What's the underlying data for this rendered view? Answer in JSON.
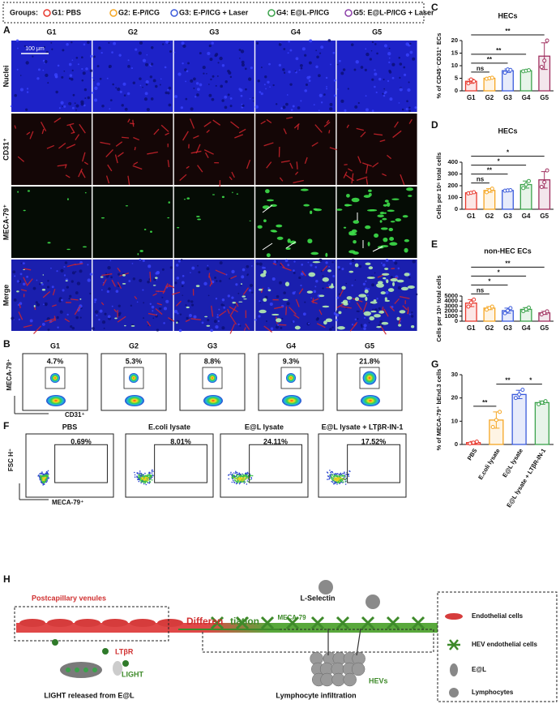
{
  "legend": {
    "title": "Groups:",
    "items": [
      {
        "label": "G1: PBS",
        "color": "#e8392e"
      },
      {
        "label": "G2: E-P/ICG",
        "color": "#f5a623"
      },
      {
        "label": "G3: E-P/ICG + Laser",
        "color": "#3b5bdb"
      },
      {
        "label": "G4: E@L-P/ICG",
        "color": "#3aa24a"
      },
      {
        "label": "G5: E@L-P/ICG + Laser",
        "color": "#8b3fa8"
      }
    ]
  },
  "panel_a": {
    "label": "A",
    "columns": [
      "G1",
      "G2",
      "G3",
      "G4",
      "G5"
    ],
    "rows": [
      "Nuclei",
      "CD31⁺",
      "MECA-79⁺",
      "Merge"
    ],
    "scale_bar": "100 μm"
  },
  "panel_b": {
    "label": "B",
    "columns": [
      "G1",
      "G2",
      "G3",
      "G4",
      "G5"
    ],
    "percentages": [
      "4.7%",
      "5.3%",
      "8.8%",
      "9.3%",
      "21.8%"
    ],
    "y_axis": "MECA-79⁺",
    "x_axis": "CD31⁺"
  },
  "panel_f": {
    "label": "F",
    "columns": [
      "PBS",
      "E.coli lysate",
      "E@L lysate",
      "E@L lysate + LTβR-IN-1"
    ],
    "percentages": [
      "0.69%",
      "8.01%",
      "24.11%",
      "17.52%"
    ],
    "y_axis": "FSC H⁺",
    "x_axis": "MECA-79⁺"
  },
  "panel_h": {
    "label": "H",
    "postcapillary": "Postcapillary venules",
    "differentiation_a": "Differen",
    "differentiation_b": "tiation",
    "l_selectin": "L-Selectin",
    "meca": "MECA-79",
    "ltbr": "LTβR",
    "light": "LIGHT",
    "hevs": "HEVs",
    "caption_left": "LIGHT released from E@L",
    "caption_right": "Lymphocyte infiltration",
    "legend": [
      "Endothelial cells",
      "HEV endothelial cells",
      "E@L",
      "Lymphocytes"
    ]
  },
  "chart_data": [
    {
      "type": "bar",
      "panel": "C",
      "title": "HECs",
      "y_label": "% of CD45⁻CD31⁺ ECs",
      "categories": [
        "G1",
        "G2",
        "G3",
        "G4",
        "G5"
      ],
      "colors": [
        "#e8392e",
        "#f5a623",
        "#3b5bdb",
        "#3aa24a",
        "#a03060"
      ],
      "values": [
        3.8,
        5.0,
        8.0,
        8.0,
        13.8
      ],
      "errors": [
        0.8,
        0.2,
        0.7,
        0.2,
        5.3
      ],
      "points": [
        [
          3.0,
          4.5,
          3.8
        ],
        [
          4.8,
          5.0,
          5.2
        ],
        [
          7.2,
          8.5,
          8.3
        ],
        [
          7.8,
          8.0,
          8.2
        ],
        [
          9.5,
          12,
          20
        ]
      ],
      "ylim": [
        0,
        20
      ],
      "yticks": [
        0,
        5,
        10,
        15,
        20
      ],
      "comparisons": [
        {
          "label": "**",
          "groups": [
            "G1",
            "G5"
          ]
        },
        {
          "label": "**",
          "groups": [
            "G1",
            "G4"
          ]
        },
        {
          "label": "**",
          "groups": [
            "G1",
            "G3"
          ]
        },
        {
          "label": "ns",
          "groups": [
            "G1",
            "G2"
          ]
        }
      ]
    },
    {
      "type": "bar",
      "panel": "D",
      "title": "HECs",
      "y_label": "Cells per 10⁶ total cells",
      "categories": [
        "G1",
        "G2",
        "G3",
        "G4",
        "G5"
      ],
      "colors": [
        "#e8392e",
        "#f5a623",
        "#3b5bdb",
        "#3aa24a",
        "#a03060"
      ],
      "values": [
        140,
        160,
        160,
        210,
        250
      ],
      "errors": [
        5,
        15,
        2,
        30,
        70
      ],
      "points": [
        [
          135,
          140,
          145
        ],
        [
          145,
          160,
          175
        ],
        [
          158,
          160,
          162
        ],
        [
          180,
          210,
          240
        ],
        [
          190,
          230,
          330
        ]
      ],
      "ylim": [
        0,
        400
      ],
      "yticks": [
        0,
        100,
        200,
        300,
        400
      ],
      "comparisons": [
        {
          "label": "*",
          "groups": [
            "G1",
            "G5"
          ]
        },
        {
          "label": "*",
          "groups": [
            "G1",
            "G4"
          ]
        },
        {
          "label": "**",
          "groups": [
            "G1",
            "G3"
          ]
        },
        {
          "label": "ns",
          "groups": [
            "G1",
            "G2"
          ]
        }
      ]
    },
    {
      "type": "bar",
      "panel": "E",
      "title": "non-HEC ECs",
      "y_label": "Cells per 10⁶ total cells",
      "categories": [
        "G1",
        "G2",
        "G3",
        "G4",
        "G5"
      ],
      "colors": [
        "#e8392e",
        "#f5a623",
        "#3b5bdb",
        "#3aa24a",
        "#a03060"
      ],
      "values": [
        3600,
        2600,
        2100,
        2350,
        1650
      ],
      "errors": [
        700,
        300,
        500,
        350,
        300
      ],
      "points": [
        [
          2900,
          3700,
          4300
        ],
        [
          2300,
          2600,
          2900
        ],
        [
          1600,
          2100,
          2600
        ],
        [
          2000,
          2350,
          2700
        ],
        [
          1350,
          1650,
          1950
        ]
      ],
      "ylim": [
        0,
        5000
      ],
      "yticks": [
        0,
        1000,
        2000,
        3000,
        4000,
        5000
      ],
      "comparisons": [
        {
          "label": "**",
          "groups": [
            "G1",
            "G5"
          ]
        },
        {
          "label": "*",
          "groups": [
            "G1",
            "G4"
          ]
        },
        {
          "label": "*",
          "groups": [
            "G1",
            "G3"
          ]
        },
        {
          "label": "ns",
          "groups": [
            "G1",
            "G2"
          ]
        }
      ]
    },
    {
      "type": "bar",
      "panel": "G",
      "y_label": "% of MECA-79⁺ bEnd.3 cells",
      "categories": [
        "PBS",
        "E.coli lysate",
        "E@L lysate",
        "E@L lysate + LTβR-IN-1"
      ],
      "colors": [
        "#e8392e",
        "#f5a623",
        "#3b5bdb",
        "#3aa24a"
      ],
      "values": [
        0.8,
        10.5,
        21.5,
        18.0
      ],
      "errors": [
        0.5,
        3.5,
        1.8,
        0.7
      ],
      "points": [
        [
          0.4,
          0.8,
          1.2
        ],
        [
          7.5,
          10.5,
          14
        ],
        [
          20,
          21.5,
          23.5
        ],
        [
          17.3,
          18,
          18.6
        ]
      ],
      "ylim": [
        0,
        30
      ],
      "yticks": [
        0,
        10,
        20,
        30
      ],
      "comparisons": [
        {
          "label": "**",
          "groups": [
            "PBS",
            "E.coli lysate"
          ]
        },
        {
          "label": "**",
          "groups": [
            "E.coli lysate",
            "E@L lysate"
          ]
        },
        {
          "label": "*",
          "groups": [
            "E@L lysate",
            "E@L lysate + LTβR-IN-1"
          ]
        }
      ]
    }
  ]
}
